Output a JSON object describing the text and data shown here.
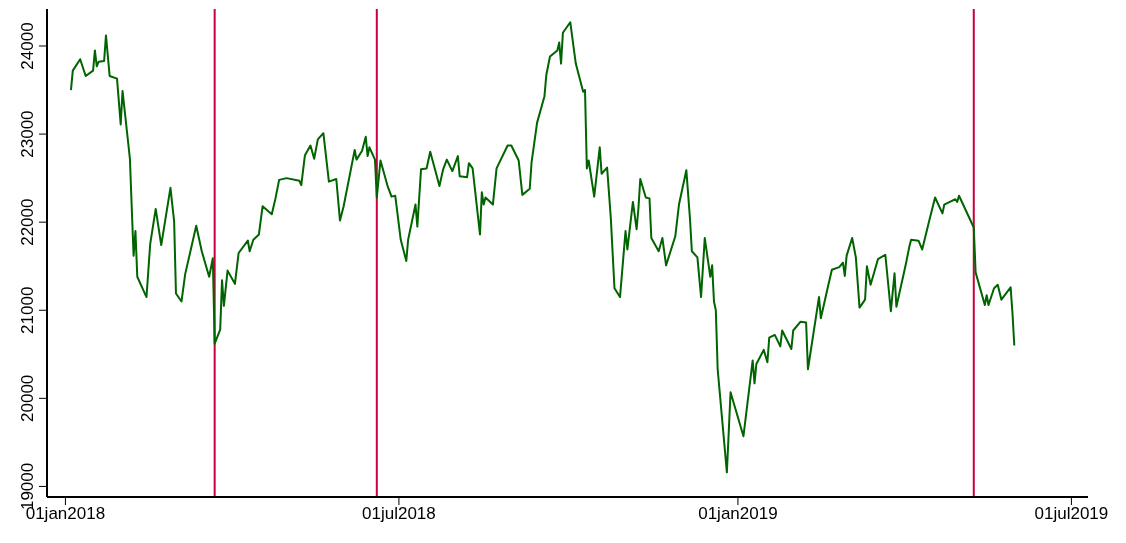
{
  "chart_data": {
    "type": "line",
    "x": [
      "2018-01-04",
      "2018-01-05",
      "2018-01-09",
      "2018-01-12",
      "2018-01-16",
      "2018-01-17",
      "2018-01-18",
      "2018-01-19",
      "2018-01-22",
      "2018-01-23",
      "2018-01-25",
      "2018-01-29",
      "2018-01-31",
      "2018-02-01",
      "2018-02-05",
      "2018-02-06",
      "2018-02-07",
      "2018-02-08",
      "2018-02-09",
      "2018-02-14",
      "2018-02-16",
      "2018-02-19",
      "2018-02-22",
      "2018-02-27",
      "2018-03-01",
      "2018-03-02",
      "2018-03-05",
      "2018-03-07",
      "2018-03-13",
      "2018-03-16",
      "2018-03-20",
      "2018-03-22",
      "2018-03-23",
      "2018-03-26",
      "2018-03-27",
      "2018-03-28",
      "2018-03-30",
      "2018-04-03",
      "2018-04-05",
      "2018-04-10",
      "2018-04-11",
      "2018-04-13",
      "2018-04-16",
      "2018-04-18",
      "2018-04-23",
      "2018-04-25",
      "2018-04-27",
      "2018-05-01",
      "2018-05-08",
      "2018-05-09",
      "2018-05-11",
      "2018-05-14",
      "2018-05-16",
      "2018-05-18",
      "2018-05-21",
      "2018-05-24",
      "2018-05-28",
      "2018-05-30",
      "2018-06-01",
      "2018-06-07",
      "2018-06-08",
      "2018-06-11",
      "2018-06-13",
      "2018-06-14",
      "2018-06-15",
      "2018-06-18",
      "2018-06-19",
      "2018-06-21",
      "2018-06-25",
      "2018-06-27",
      "2018-06-29",
      "2018-07-02",
      "2018-07-05",
      "2018-07-06",
      "2018-07-10",
      "2018-07-11",
      "2018-07-13",
      "2018-07-16",
      "2018-07-18",
      "2018-07-23",
      "2018-07-25",
      "2018-07-27",
      "2018-07-30",
      "2018-08-02",
      "2018-08-03",
      "2018-08-07",
      "2018-08-08",
      "2018-08-10",
      "2018-08-14",
      "2018-08-15",
      "2018-08-16",
      "2018-08-17",
      "2018-08-21",
      "2018-08-23",
      "2018-08-29",
      "2018-08-31",
      "2018-09-04",
      "2018-09-06",
      "2018-09-10",
      "2018-09-11",
      "2018-09-14",
      "2018-09-18",
      "2018-09-19",
      "2018-09-21",
      "2018-09-25",
      "2018-09-26",
      "2018-09-27",
      "2018-09-28",
      "2018-10-02",
      "2018-10-05",
      "2018-10-09",
      "2018-10-10",
      "2018-10-11",
      "2018-10-12",
      "2018-10-15",
      "2018-10-18",
      "2018-10-19",
      "2018-10-22",
      "2018-10-24",
      "2018-10-26",
      "2018-10-29",
      "2018-11-01",
      "2018-11-02",
      "2018-11-05",
      "2018-11-07",
      "2018-11-08",
      "2018-11-09",
      "2018-11-12",
      "2018-11-14",
      "2018-11-15",
      "2018-11-19",
      "2018-11-21",
      "2018-11-23",
      "2018-11-28",
      "2018-11-30",
      "2018-12-04",
      "2018-12-06",
      "2018-12-07",
      "2018-12-10",
      "2018-12-12",
      "2018-12-14",
      "2018-12-17",
      "2018-12-18",
      "2018-12-19",
      "2018-12-20",
      "2018-12-21",
      "2018-12-26",
      "2018-12-28",
      "2019-01-04",
      "2019-01-09",
      "2019-01-10",
      "2019-01-11",
      "2019-01-15",
      "2019-01-17",
      "2019-01-18",
      "2019-01-21",
      "2019-01-24",
      "2019-01-25",
      "2019-01-30",
      "2019-01-31",
      "2019-02-04",
      "2019-02-07",
      "2019-02-08",
      "2019-02-14",
      "2019-02-15",
      "2019-02-19",
      "2019-02-21",
      "2019-02-25",
      "2019-02-27",
      "2019-02-28",
      "2019-03-01",
      "2019-03-04",
      "2019-03-06",
      "2019-03-08",
      "2019-03-11",
      "2019-03-12",
      "2019-03-14",
      "2019-03-18",
      "2019-03-22",
      "2019-03-25",
      "2019-03-27",
      "2019-03-28",
      "2019-04-02",
      "2019-04-04",
      "2019-04-05",
      "2019-04-09",
      "2019-04-11",
      "2019-04-15",
      "2019-04-18",
      "2019-04-22",
      "2019-04-23",
      "2019-04-26",
      "2019-04-29",
      "2019-04-30",
      "2019-05-01",
      "2019-05-09",
      "2019-05-10",
      "2019-05-15",
      "2019-05-16",
      "2019-05-17",
      "2019-05-20",
      "2019-05-22",
      "2019-05-24",
      "2019-05-29",
      "2019-05-30",
      "2019-05-31"
    ],
    "series": [
      {
        "color": "#006400",
        "values": [
          23500,
          23720,
          23850,
          23660,
          23720,
          23950,
          23770,
          23820,
          23830,
          24120,
          23660,
          23630,
          23110,
          23490,
          22720,
          22160,
          21620,
          21900,
          21380,
          21150,
          21750,
          22150,
          21740,
          22390,
          22010,
          21190,
          21100,
          21410,
          21960,
          21670,
          21380,
          21590,
          20620,
          20780,
          21340,
          21050,
          21450,
          21300,
          21650,
          21790,
          21670,
          21800,
          21860,
          22180,
          22090,
          22270,
          22480,
          22500,
          22470,
          22420,
          22760,
          22870,
          22720,
          22940,
          23010,
          22460,
          22490,
          22020,
          22180,
          22820,
          22710,
          22810,
          22970,
          22750,
          22850,
          22710,
          22280,
          22700,
          22400,
          22290,
          22300,
          21800,
          21560,
          21800,
          22200,
          21950,
          22600,
          22610,
          22800,
          22410,
          22600,
          22710,
          22580,
          22750,
          22520,
          22510,
          22670,
          22610,
          21860,
          22340,
          22200,
          22280,
          22200,
          22610,
          22870,
          22870,
          22700,
          22310,
          22380,
          22680,
          23130,
          23430,
          23670,
          23880,
          23950,
          24040,
          23800,
          24150,
          24270,
          23800,
          23480,
          23500,
          22610,
          22700,
          22290,
          22850,
          22550,
          22620,
          22050,
          21250,
          21150,
          21900,
          21690,
          22230,
          21920,
          22160,
          22490,
          22280,
          22270,
          21820,
          21670,
          21820,
          21510,
          21840,
          22200,
          22590,
          22030,
          21670,
          21600,
          21150,
          21820,
          21380,
          21510,
          21100,
          21000,
          20330,
          19160,
          20070,
          19570,
          20430,
          20170,
          20390,
          20550,
          20410,
          20690,
          20720,
          20590,
          20770,
          20560,
          20770,
          20870,
          20860,
          20330,
          21150,
          20910,
          21280,
          21460,
          21490,
          21540,
          21390,
          21620,
          21820,
          21600,
          21030,
          21120,
          21500,
          21290,
          21580,
          21630,
          20990,
          21420,
          21040,
          21510,
          21720,
          21800,
          21790,
          21690,
          22030,
          22280,
          22100,
          22200,
          22230,
          22260,
          22230,
          22300,
          21940,
          21430,
          21060,
          21170,
          21060,
          21250,
          21290,
          21120,
          21260,
          20970,
          20600
        ]
      }
    ],
    "xlim": [
      "2017-12-22",
      "2019-07-10"
    ],
    "xticks": [
      {
        "value": "2018-01-01",
        "label": "01jan2018"
      },
      {
        "value": "2018-07-01",
        "label": "01jul2018"
      },
      {
        "value": "2019-01-01",
        "label": "01jan2019"
      },
      {
        "value": "2019-07-01",
        "label": "01jul2019"
      }
    ],
    "ylim": [
      18880,
      24420
    ],
    "yticks": [
      19000,
      20000,
      21000,
      22000,
      23000,
      24000
    ],
    "ref_lines": [
      {
        "axis": "x",
        "value": "2018-03-23",
        "color": "#c8003c"
      },
      {
        "axis": "x",
        "value": "2018-06-19",
        "color": "#c8003c"
      },
      {
        "axis": "x",
        "value": "2019-05-09",
        "color": "#c8003c"
      }
    ],
    "grid": false,
    "legend": false,
    "marker": "none",
    "line_style": "solid"
  }
}
